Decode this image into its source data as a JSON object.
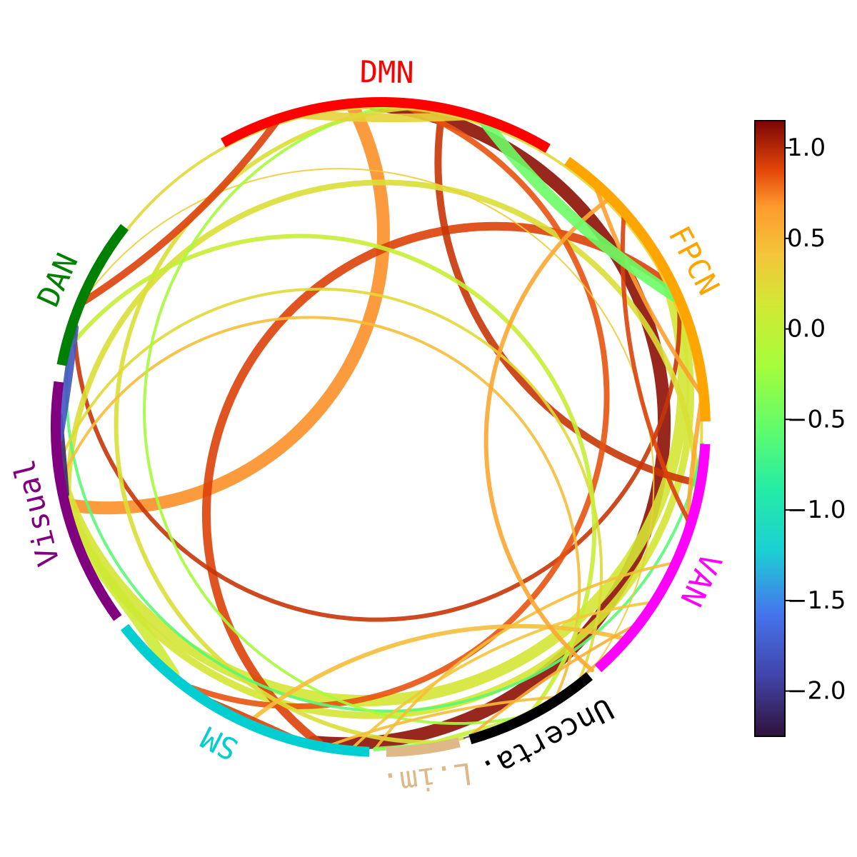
{
  "networks": [
    {
      "id": "dmn",
      "label": "DMN",
      "color": "#ff0000",
      "start": 241,
      "end": 301
    },
    {
      "id": "fpcn",
      "label": "FPCN",
      "color": "#ffa500",
      "start": 305,
      "end": 359
    },
    {
      "id": "van",
      "label": "VAN",
      "color": "#ff00ff",
      "start": 3,
      "end": 48
    },
    {
      "id": "uncertain",
      "label": "Uncerta.",
      "color": "#000000",
      "start": 50,
      "end": 74
    },
    {
      "id": "limbic",
      "label": "L.im.",
      "color": "#deb887",
      "start": 76,
      "end": 89
    },
    {
      "id": "sm",
      "label": "SM",
      "color": "#00ced1",
      "start": 92,
      "end": 142
    },
    {
      "id": "visual",
      "label": "Visual",
      "color": "#800080",
      "start": 144,
      "end": 188
    },
    {
      "id": "dan",
      "label": "DAN",
      "color": "#008000",
      "start": 191,
      "end": 218
    }
  ],
  "connections": [
    {
      "a": 269,
      "b": 102,
      "value": 1.1,
      "weight": 9
    },
    {
      "a": 265,
      "b": 166,
      "value": 0.7,
      "weight": 9
    },
    {
      "a": 332,
      "b": 169,
      "value": 0.15,
      "weight": 8
    },
    {
      "a": 336,
      "b": 168,
      "value": 0.15,
      "weight": 5
    },
    {
      "a": 334,
      "b": 101,
      "value": 0.9,
      "weight": 6
    },
    {
      "a": 10,
      "b": 281,
      "value": 0.95,
      "weight": 5
    },
    {
      "a": 338,
      "b": 198,
      "value": 0.95,
      "weight": 3
    },
    {
      "a": 11,
      "b": 166,
      "value": 0.2,
      "weight": 4
    },
    {
      "a": 274,
      "b": 126,
      "value": 0.85,
      "weight": 4
    },
    {
      "a": 277,
      "b": 78,
      "value": 0.2,
      "weight": 3
    },
    {
      "a": 3,
      "b": 196,
      "value": -0.6,
      "weight": 2
    },
    {
      "a": 24,
      "b": 203,
      "value": 0.25,
      "weight": 2
    },
    {
      "a": 52,
      "b": 174,
      "value": 0.25,
      "weight": 2
    },
    {
      "a": 57,
      "b": 171,
      "value": 0.45,
      "weight": 2
    },
    {
      "a": 49,
      "b": 204,
      "value": 0.35,
      "weight": 1
    },
    {
      "a": 62,
      "b": 194,
      "value": 0.05,
      "weight": 3
    },
    {
      "a": 66,
      "b": 83,
      "value": 0.05,
      "weight": 3
    },
    {
      "a": 64,
      "b": 272,
      "value": -0.2,
      "weight": 2
    },
    {
      "a": 25,
      "b": 91,
      "value": 0.45,
      "weight": 2
    },
    {
      "a": 33,
      "b": 95,
      "value": 0.4,
      "weight": 2
    },
    {
      "a": 41,
      "b": 114,
      "value": 0.45,
      "weight": 3
    },
    {
      "a": 57,
      "b": 99,
      "value": 0.45,
      "weight": 2
    },
    {
      "a": 38,
      "b": 74,
      "value": 0.55,
      "weight": 2
    },
    {
      "a": 18,
      "b": 355,
      "value": 0.6,
      "weight": 3
    },
    {
      "a": 312,
      "b": 354,
      "value": 0.65,
      "weight": 3
    },
    {
      "a": 49,
      "b": 315,
      "value": 0.6,
      "weight": 3
    },
    {
      "a": 17,
      "b": 319,
      "value": 0.9,
      "weight": 3
    },
    {
      "a": 327,
      "b": 342,
      "value": 0.35,
      "weight": 2
    },
    {
      "a": 3,
      "b": 14,
      "value": -0.7,
      "weight": 2
    },
    {
      "a": 43,
      "b": 54,
      "value": 0.55,
      "weight": 2
    },
    {
      "a": 60,
      "b": 69,
      "value": 0.4,
      "weight": 2
    },
    {
      "a": 75,
      "b": 79,
      "value": 0.2,
      "weight": 2
    },
    {
      "a": 81,
      "b": 91,
      "value": -0.4,
      "weight": 3
    },
    {
      "a": 68,
      "b": 75,
      "value": -1.9,
      "weight": 1
    },
    {
      "a": 106,
      "b": 122,
      "value": 0.9,
      "weight": 3
    },
    {
      "a": 130,
      "b": 158,
      "value": 0.1,
      "weight": 8
    },
    {
      "a": 168,
      "b": 182,
      "value": -2.1,
      "weight": 5
    },
    {
      "a": 178,
      "b": 198,
      "value": -1.8,
      "weight": 6
    },
    {
      "a": 201,
      "b": 207,
      "value": -1.8,
      "weight": 1
    },
    {
      "a": 203,
      "b": 251,
      "value": 0.9,
      "weight": 5
    },
    {
      "a": 256,
      "b": 285,
      "value": 0.3,
      "weight": 6
    },
    {
      "a": 289,
      "b": 336,
      "value": -0.5,
      "weight": 8
    },
    {
      "a": 278,
      "b": 279,
      "value": 0.95,
      "weight": 1
    }
  ],
  "colorbar": {
    "min": -2.25,
    "max": 1.15,
    "ticks": [
      {
        "value": 1.0,
        "label": "1.0"
      },
      {
        "value": 0.5,
        "label": "0.5"
      },
      {
        "value": 0.0,
        "label": "0.0"
      },
      {
        "value": -0.5,
        "label": "−0.5"
      },
      {
        "value": -1.0,
        "label": "−1.0"
      },
      {
        "value": -1.5,
        "label": "−1.5"
      },
      {
        "value": -2.0,
        "label": "−2.0"
      }
    ]
  }
}
